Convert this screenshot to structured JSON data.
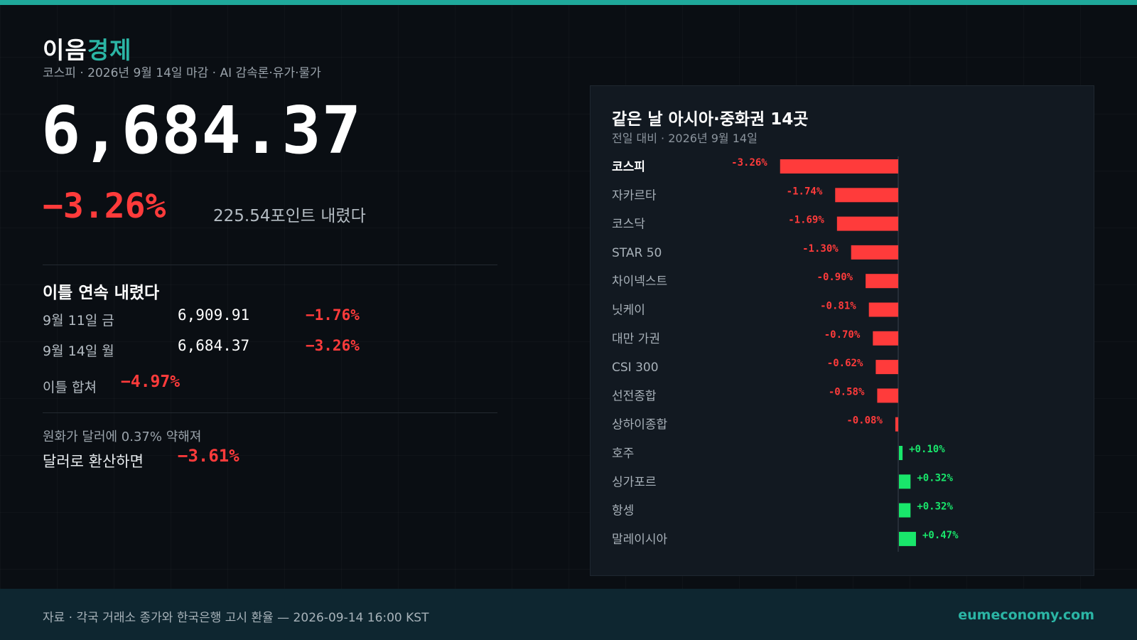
{
  "brand": {
    "part1": "이음",
    "part2": "경제"
  },
  "subtitle": "코스피 · 2026년 9월 14일 마감 · AI 감속론·유가·물가",
  "headline": {
    "value": "6,684.37",
    "change_pct": "−3.26%",
    "points": "225.54포인트 내렸다"
  },
  "streak": {
    "title": "이틀 연속 내렸다",
    "rows": [
      {
        "label": "9월 11일 금",
        "value": "6,909.91",
        "change": "−1.76%"
      },
      {
        "label": "9월 14일 월",
        "value": "6,684.37",
        "change": "−3.26%"
      }
    ],
    "sum_label": "이틀 합쳐",
    "sum_value": "−4.97%"
  },
  "fx": {
    "line": "원화가 달러에 0.37% 약해져",
    "label": "달러로 환산하면",
    "value": "−3.61%"
  },
  "colors": {
    "accent": "#2bb5a5",
    "down": "#ff3b3b",
    "up": "#19e66b"
  },
  "chart_data": {
    "type": "bar",
    "orientation": "horizontal",
    "title": "같은 날 아시아·중화권 14곳",
    "subtitle": "전일 대비 · 2026년 9월 14일",
    "highlight": "코스피",
    "categories": [
      "코스피",
      "자카르타",
      "코스닥",
      "STAR 50",
      "차이넥스트",
      "닛케이",
      "대만 가권",
      "CSI 300",
      "선전종합",
      "상하이종합",
      "호주",
      "싱가포르",
      "항셍",
      "말레이시아"
    ],
    "values": [
      -3.26,
      -1.74,
      -1.69,
      -1.3,
      -0.9,
      -0.81,
      -0.7,
      -0.62,
      -0.58,
      -0.08,
      0.1,
      0.32,
      0.32,
      0.47
    ],
    "value_labels": [
      "-3.26%",
      "-1.74%",
      "-1.69%",
      "-1.30%",
      "-0.90%",
      "-0.81%",
      "-0.70%",
      "-0.62%",
      "-0.58%",
      "-0.08%",
      "+0.10%",
      "+0.32%",
      "+0.32%",
      "+0.47%"
    ]
  },
  "footer": {
    "source": "자료 · 각국 거래소 종가와 한국은행 고시 환율 — 2026-09-14 16:00 KST",
    "site": "eumeconomy.com"
  }
}
